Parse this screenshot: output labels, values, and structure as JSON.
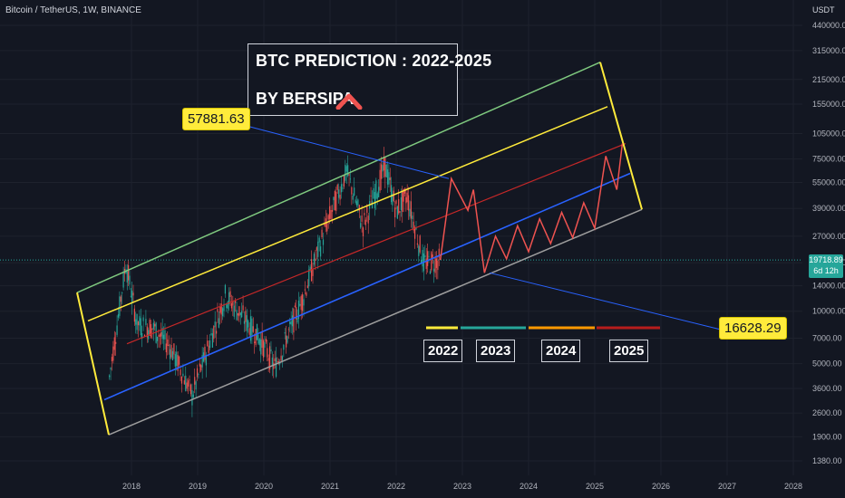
{
  "header": {
    "symbol_line": "Bitcoin / TetherUS, 1W, BINANCE",
    "currency": "USDT"
  },
  "title_box": {
    "line1": "BTC PREDICTION : 2022-2025",
    "line2": "BY BERSIPA",
    "logo_icon": "red-chevron-up-icon"
  },
  "callouts": {
    "top": "57881.63",
    "bottom": "16628.29"
  },
  "price_tag": {
    "price": "19718.89",
    "countdown": "6d 12h"
  },
  "year_labels": [
    "2022",
    "2023",
    "2024",
    "2025"
  ],
  "colors": {
    "background": "#131722",
    "upper_channel": "#7fc97f",
    "yellow_channel": "#ffeb3b",
    "mid_channel": "#c62828",
    "support": "#2962ff",
    "lower_channel": "#9e9e9e",
    "prediction": "#ef5350",
    "year_2022": "#ffeb3b",
    "year_2023": "#26a69a",
    "year_2024": "#ff9800",
    "year_2025": "#b71c1c"
  },
  "chart_data": {
    "type": "line",
    "title": "BTC PREDICTION : 2022-2025",
    "yscale": "log",
    "ylim": [
      1380,
      440000
    ],
    "y_tick_labels": [
      "440000.00",
      "315000.00",
      "215000.00",
      "155000.00",
      "105000.00",
      "75000.00",
      "55000.00",
      "39000.00",
      "27000.00",
      "19000.00",
      "14000.00",
      "10000.00",
      "7000.00",
      "5000.00",
      "3600.00",
      "2600.00",
      "1900.00",
      "1380.00"
    ],
    "x_tick_labels": [
      "2018",
      "2019",
      "2020",
      "2021",
      "2022",
      "2023",
      "2024",
      "2025",
      "2026",
      "2027",
      "2028"
    ],
    "current_price": 19718.89,
    "annotations": [
      "57881.63",
      "16628.29"
    ],
    "series": [
      {
        "values": [
          {
            "x": "2017-09",
            "y": 4200
          },
          {
            "x": "2017-12",
            "y": 19000
          },
          {
            "x": "2018-02",
            "y": 8500
          },
          {
            "x": "2018-05",
            "y": 8000
          },
          {
            "x": "2018-08",
            "y": 6300
          },
          {
            "x": "2018-12",
            "y": 3300
          },
          {
            "x": "2019-06",
            "y": 12500
          },
          {
            "x": "2019-12",
            "y": 7200
          },
          {
            "x": "2020-03",
            "y": 4800
          },
          {
            "x": "2020-08",
            "y": 11800
          },
          {
            "x": "2020-12",
            "y": 29000
          },
          {
            "x": "2021-04",
            "y": 64000
          },
          {
            "x": "2021-07",
            "y": 31000
          },
          {
            "x": "2021-11",
            "y": 69000
          },
          {
            "x": "2022-01",
            "y": 38000
          },
          {
            "x": "2022-03",
            "y": 46000
          },
          {
            "x": "2022-06",
            "y": 19000
          },
          {
            "x": "2022-09",
            "y": 19718.89
          }
        ]
      },
      {
        "values": [
          {
            "x": "2022-09",
            "y": 19718.89
          },
          {
            "x": "2022-11",
            "y": 57881.63
          },
          {
            "x": "2023-02",
            "y": 38000
          },
          {
            "x": "2023-03",
            "y": 50000
          },
          {
            "x": "2023-05",
            "y": 16628.29
          },
          {
            "x": "2023-07",
            "y": 27000
          },
          {
            "x": "2023-09",
            "y": 20000
          },
          {
            "x": "2023-11",
            "y": 31000
          },
          {
            "x": "2024-01",
            "y": 22000
          },
          {
            "x": "2024-03",
            "y": 34000
          },
          {
            "x": "2024-05",
            "y": 24500
          },
          {
            "x": "2024-07",
            "y": 37000
          },
          {
            "x": "2024-09",
            "y": 26500
          },
          {
            "x": "2024-11",
            "y": 42000
          },
          {
            "x": "2025-01",
            "y": 30000
          },
          {
            "x": "2025-03",
            "y": 78000
          },
          {
            "x": "2025-05",
            "y": 50000
          },
          {
            "x": "2025-06",
            "y": 92000
          }
        ]
      }
    ]
  }
}
